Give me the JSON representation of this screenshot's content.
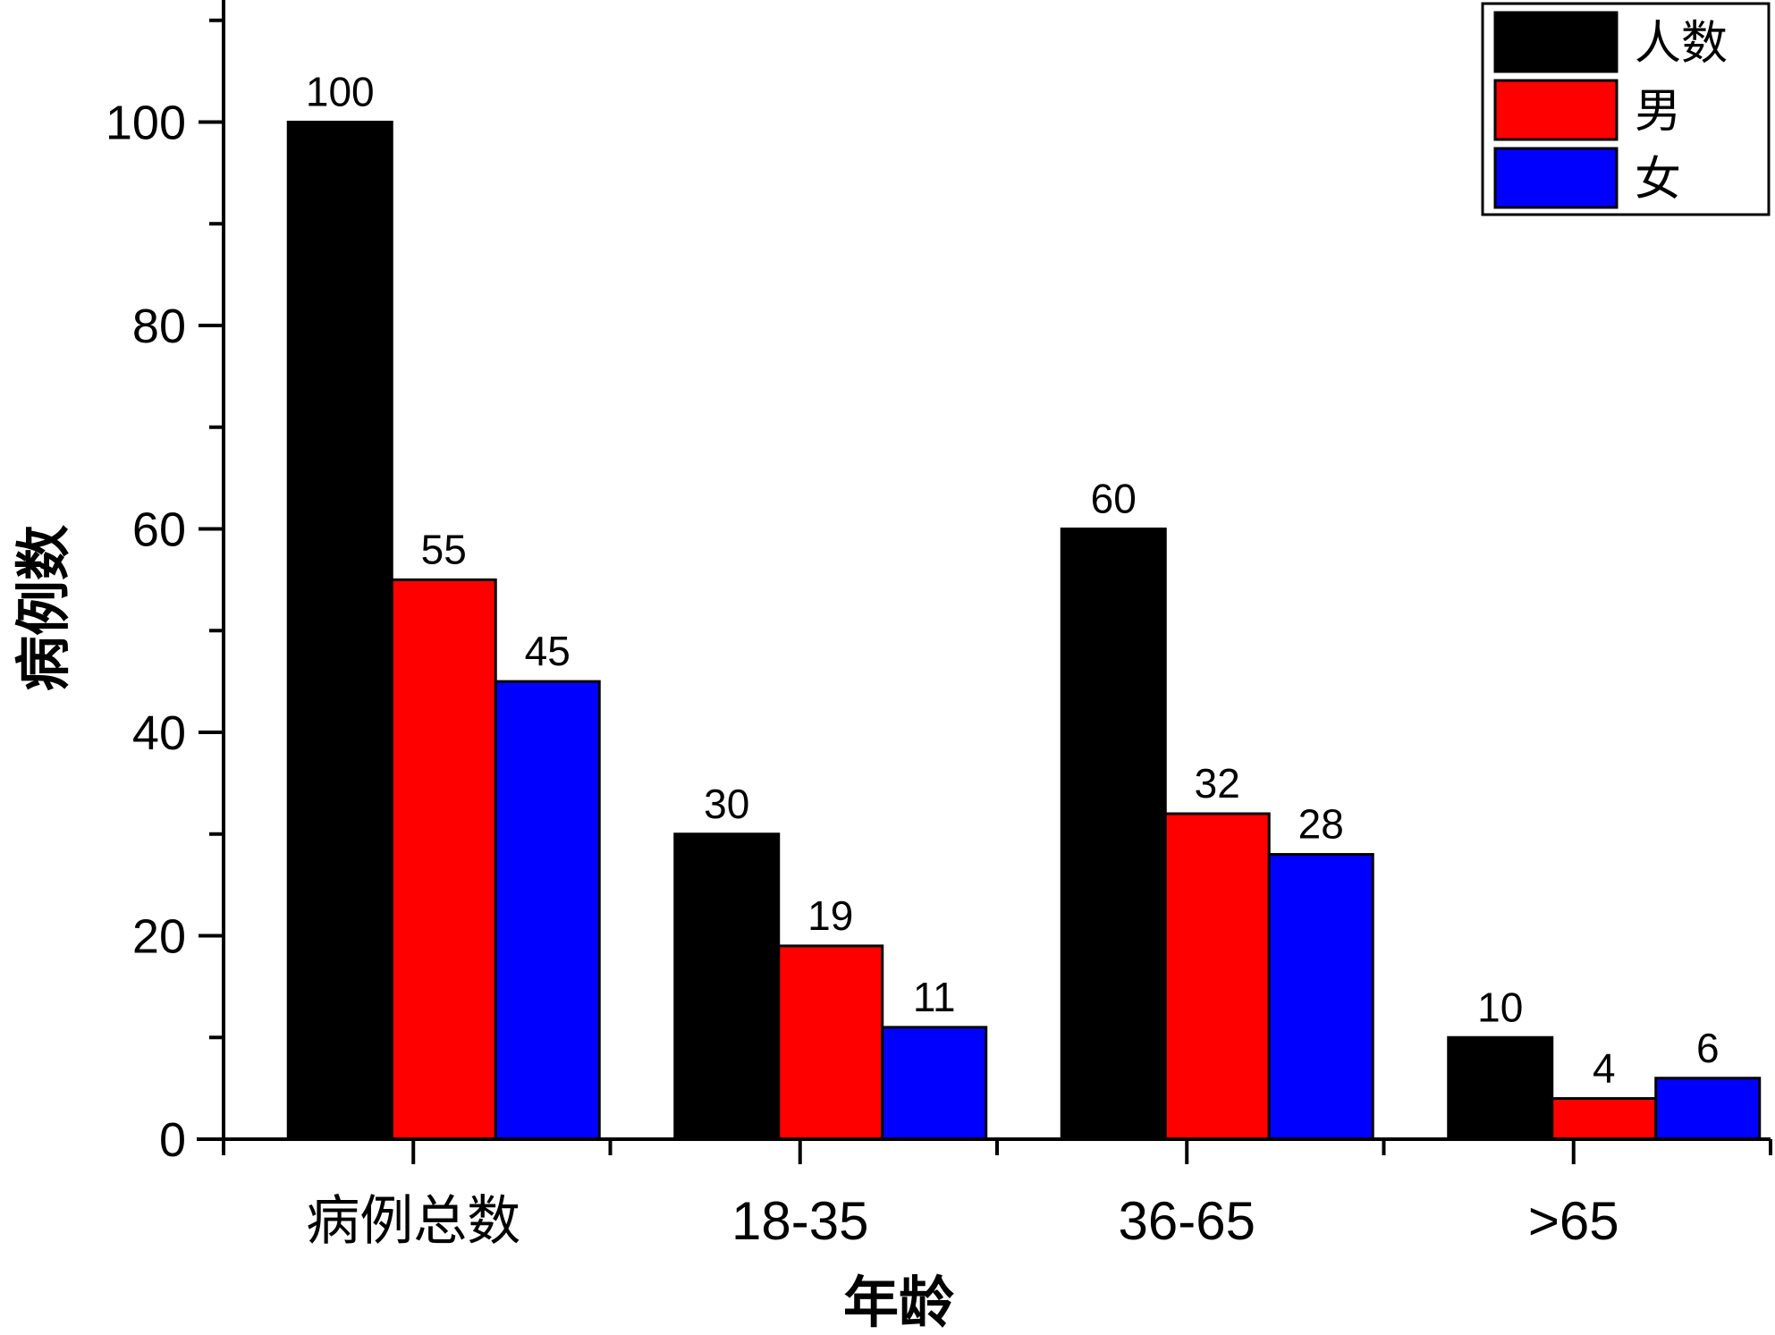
{
  "chart_data": {
    "type": "bar",
    "categories": [
      "病例总数",
      "18-35",
      "36-65",
      ">65"
    ],
    "series": [
      {
        "name": "人数",
        "values": [
          100,
          30,
          60,
          10
        ],
        "color": "#000000"
      },
      {
        "name": "男",
        "values": [
          55,
          19,
          32,
          4
        ],
        "color": "#ff0000"
      },
      {
        "name": "女",
        "values": [
          45,
          11,
          28,
          6
        ],
        "color": "#0000ff"
      }
    ],
    "xlabel": "年龄",
    "ylabel": "病例数",
    "ylim": [
      0,
      112
    ],
    "yticks": [
      0,
      20,
      40,
      60,
      80,
      100
    ],
    "legend_position": "top-right",
    "grid": false,
    "data_labels": true
  }
}
